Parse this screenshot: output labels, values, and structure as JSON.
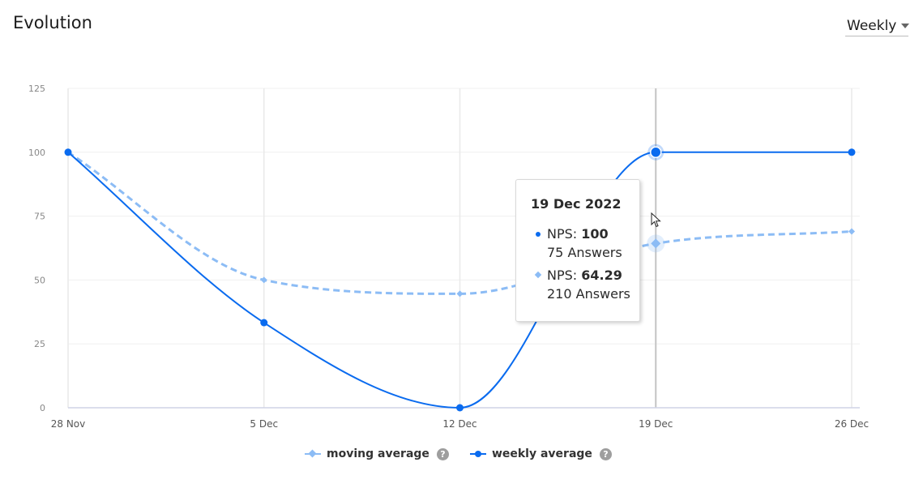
{
  "header": {
    "title": "Evolution",
    "period_select": {
      "value": "Weekly"
    }
  },
  "colors": {
    "weekly": "#0a6bef",
    "moving": "#8cbcf5",
    "grid": "#e9e9e9",
    "axis": "#cfd4e6",
    "tick_text": "#888888",
    "hover_line": "#c4c4c4"
  },
  "chart_data": {
    "type": "line",
    "categories": [
      "28 Nov",
      "5 Dec",
      "12 Dec",
      "19 Dec",
      "26 Dec"
    ],
    "series": [
      {
        "name": "moving average",
        "key": "moving",
        "values": [
          100,
          50,
          44.6,
          64.29,
          69
        ],
        "style": "dashed",
        "marker": "diamond"
      },
      {
        "name": "weekly average",
        "key": "weekly",
        "values": [
          100,
          33.3,
          0,
          100,
          100
        ],
        "style": "solid",
        "marker": "circle"
      }
    ],
    "ylim": [
      0,
      125
    ],
    "yticks": [
      "0",
      "25",
      "50",
      "75",
      "100",
      "125"
    ],
    "grid": true,
    "legend_position": "bottom-center",
    "highlighted_category": "19 Dec"
  },
  "tooltip": {
    "date": "19 Dec 2022",
    "rows": [
      {
        "metric": "NPS:",
        "value": "100",
        "answers": "75 Answers",
        "marker": "circle"
      },
      {
        "metric": "NPS:",
        "value": "64.29",
        "answers": "210 Answers",
        "marker": "diamond"
      }
    ]
  },
  "legend": {
    "items": [
      {
        "label": "moving average",
        "help": "?"
      },
      {
        "label": "weekly average",
        "help": "?"
      }
    ]
  }
}
